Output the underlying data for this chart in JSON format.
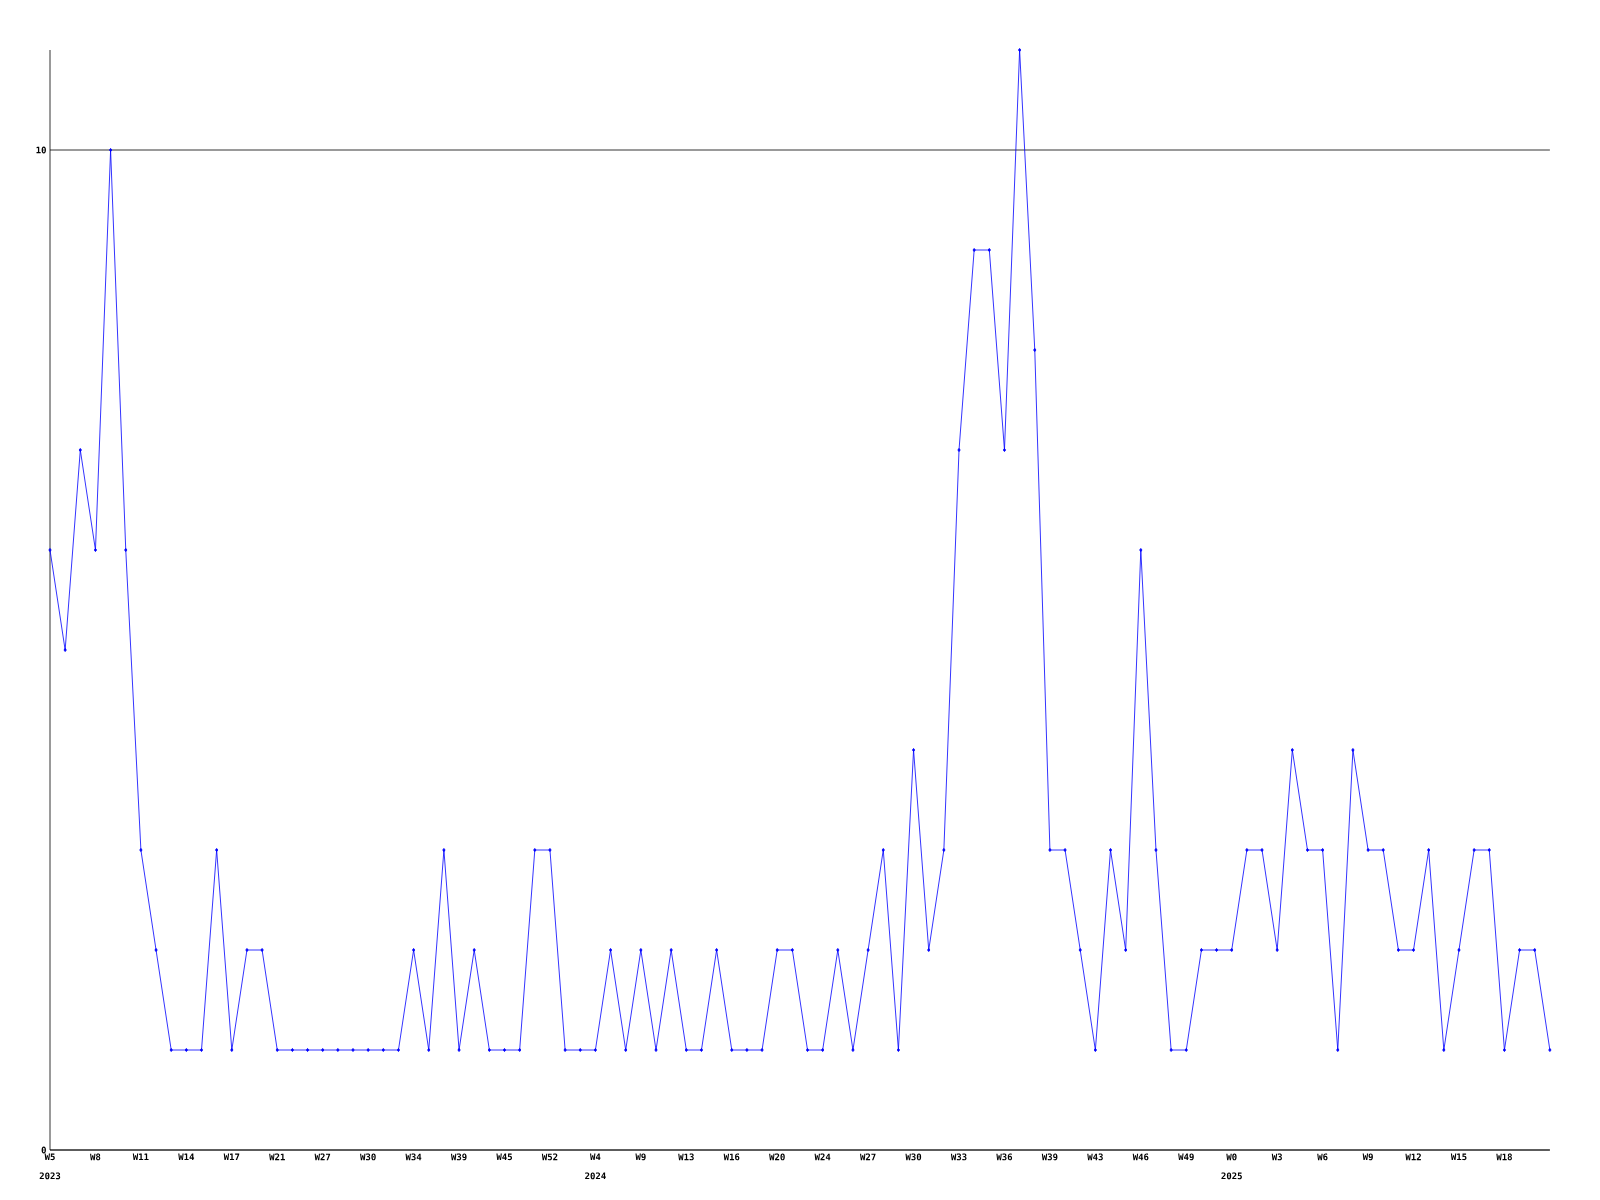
{
  "chart_data": {
    "type": "line",
    "categories": [
      "W5",
      null,
      null,
      "W8",
      null,
      null,
      "W11",
      null,
      null,
      "W14",
      null,
      null,
      "W17",
      null,
      null,
      "W21",
      null,
      null,
      "W27",
      null,
      null,
      "W30",
      null,
      null,
      "W34",
      null,
      null,
      "W39",
      null,
      null,
      "W45",
      null,
      null,
      "W52",
      null,
      null,
      "W4",
      null,
      null,
      "W9",
      null,
      null,
      "W13",
      null,
      null,
      "W16",
      null,
      null,
      "W20",
      null,
      null,
      "W24",
      null,
      null,
      "W27",
      null,
      null,
      "W30",
      null,
      null,
      "W33",
      null,
      null,
      "W36",
      null,
      null,
      "W39",
      null,
      null,
      "W43",
      null,
      null,
      "W46",
      null,
      null,
      "W49",
      null,
      null,
      "W0",
      null,
      null,
      "W3",
      null,
      null,
      "W6",
      null,
      null,
      "W9",
      null,
      null,
      "W12",
      null,
      null,
      "W15",
      null,
      null,
      "W18",
      null,
      null,
      null
    ],
    "series": [
      {
        "color": "#0000ff",
        "values": [
          6,
          5,
          7,
          6,
          10,
          6,
          3,
          2,
          1,
          1,
          1,
          3,
          1,
          2,
          2,
          1,
          1,
          1,
          1,
          1,
          1,
          1,
          1,
          1,
          2,
          1,
          3,
          1,
          2,
          1,
          1,
          1,
          3,
          3,
          1,
          1,
          1,
          2,
          1,
          2,
          1,
          2,
          1,
          1,
          2,
          1,
          1,
          1,
          2,
          2,
          1,
          1,
          2,
          1,
          2,
          3,
          1,
          4,
          2,
          3,
          7,
          9,
          9,
          7,
          11,
          8,
          3,
          3,
          2,
          1,
          3,
          2,
          6,
          3,
          1,
          1,
          2,
          2,
          2,
          3,
          3,
          2,
          4,
          3,
          3,
          1,
          4,
          3,
          3,
          2,
          2,
          3,
          1,
          2,
          3,
          3,
          1,
          2,
          2,
          1
        ]
      }
    ],
    "annotations": [
      "2023",
      "2024",
      "2025"
    ],
    "ylim": [
      0,
      11
    ],
    "yticks": [
      0,
      10
    ],
    "grid": "y",
    "marker": "diamond",
    "line_style": "solid"
  }
}
